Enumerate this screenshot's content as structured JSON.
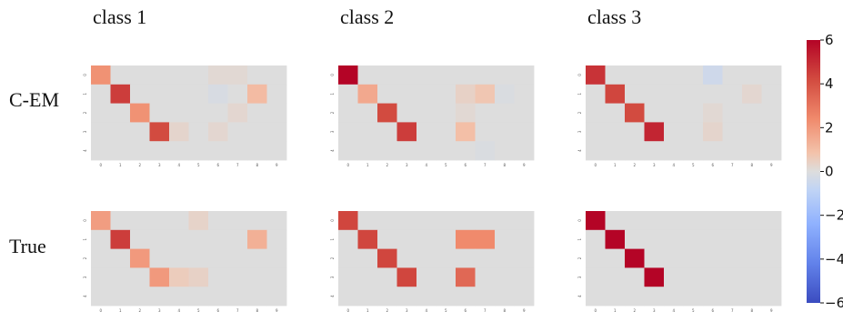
{
  "figure": {
    "col_titles": [
      "class 1",
      "class 2",
      "class 3"
    ],
    "row_labels": [
      "C-EM",
      "True"
    ]
  },
  "colorbar": {
    "range": [
      -6,
      6
    ],
    "ticks": [
      "6",
      "4",
      "2",
      "0",
      "−2",
      "−4",
      "−6"
    ],
    "colormap": "coolwarm",
    "colors": {
      "low": "#3b4cc0",
      "mid": "#dddddd",
      "high": "#b40426"
    }
  },
  "chart_data": [
    {
      "type": "heatmap",
      "row_label": "C-EM",
      "col_title": "class 1",
      "x_ticks": [
        "0",
        "1",
        "2",
        "3",
        "4",
        "5",
        "6",
        "7",
        "8",
        "9"
      ],
      "y_ticks": [
        "0",
        "1",
        "2",
        "3",
        "4"
      ],
      "values": [
        [
          2.8,
          0,
          0,
          0,
          0,
          0,
          0.3,
          0.3,
          0,
          0
        ],
        [
          0,
          4.8,
          0,
          0,
          0,
          0,
          -0.3,
          0,
          1.7,
          0
        ],
        [
          0,
          0,
          2.8,
          0,
          0,
          0,
          0,
          0.4,
          0,
          0
        ],
        [
          0,
          0,
          0,
          4.5,
          0.5,
          0,
          0.4,
          0,
          0,
          0
        ],
        [
          0,
          0,
          0,
          0,
          0,
          0,
          0,
          0,
          0,
          0
        ]
      ]
    },
    {
      "type": "heatmap",
      "row_label": "C-EM",
      "col_title": "class 2",
      "x_ticks": [
        "0",
        "1",
        "2",
        "3",
        "4",
        "5",
        "6",
        "7",
        "8",
        "9"
      ],
      "y_ticks": [
        "0",
        "1",
        "2",
        "3",
        "4"
      ],
      "values": [
        [
          6.0,
          0,
          0,
          0,
          0,
          0,
          0,
          0,
          0,
          0
        ],
        [
          0,
          2.2,
          0,
          0,
          0,
          0,
          0.7,
          1.3,
          -0.2,
          0
        ],
        [
          0,
          0,
          4.5,
          0,
          0,
          0,
          0.3,
          0,
          0,
          0
        ],
        [
          0,
          0,
          0,
          4.8,
          0,
          0,
          1.6,
          0,
          0,
          0
        ],
        [
          0,
          0,
          0,
          0,
          0,
          0,
          0,
          -0.2,
          0,
          0
        ]
      ]
    },
    {
      "type": "heatmap",
      "row_label": "C-EM",
      "col_title": "class 3",
      "x_ticks": [
        "0",
        "1",
        "2",
        "3",
        "4",
        "5",
        "6",
        "7",
        "8",
        "9"
      ],
      "y_ticks": [
        "0",
        "1",
        "2",
        "3",
        "4"
      ],
      "values": [
        [
          5.0,
          0,
          0,
          0,
          0,
          0,
          -0.8,
          0,
          0,
          0
        ],
        [
          0,
          4.6,
          0,
          0,
          0,
          0,
          0,
          0,
          0.4,
          0
        ],
        [
          0,
          0,
          4.5,
          0,
          0,
          0,
          0.3,
          0,
          0,
          0
        ],
        [
          0,
          0,
          0,
          5.3,
          0,
          0,
          0.5,
          0,
          0,
          0
        ],
        [
          0,
          0,
          0,
          0,
          0,
          0,
          0,
          0,
          0,
          0
        ]
      ]
    },
    {
      "type": "heatmap",
      "row_label": "True",
      "col_title": "class 1",
      "x_ticks": [
        "0",
        "1",
        "2",
        "3",
        "4",
        "5",
        "6",
        "7",
        "8",
        "9"
      ],
      "y_ticks": [
        "0",
        "1",
        "2",
        "3",
        "4"
      ],
      "values": [
        [
          2.5,
          0,
          0,
          0,
          0,
          0.6,
          0,
          0,
          0,
          0
        ],
        [
          0,
          4.8,
          0,
          0,
          0,
          0,
          0,
          0,
          2.0,
          0
        ],
        [
          0,
          0,
          2.6,
          0,
          0,
          0,
          0,
          0,
          0,
          0
        ],
        [
          0,
          0,
          0,
          2.6,
          1.0,
          0.7,
          0,
          0,
          0,
          0
        ],
        [
          0,
          0,
          0,
          0,
          0,
          0,
          0,
          0,
          0,
          0
        ]
      ]
    },
    {
      "type": "heatmap",
      "row_label": "True",
      "col_title": "class 2",
      "x_ticks": [
        "0",
        "1",
        "2",
        "3",
        "4",
        "5",
        "6",
        "7",
        "8",
        "9"
      ],
      "y_ticks": [
        "0",
        "1",
        "2",
        "3",
        "4"
      ],
      "values": [
        [
          4.6,
          0,
          0,
          0,
          0,
          0,
          0,
          0,
          0,
          0
        ],
        [
          0,
          4.6,
          0,
          0,
          0,
          0,
          3.0,
          3.0,
          0,
          0
        ],
        [
          0,
          0,
          4.6,
          0,
          0,
          0,
          0,
          0,
          0,
          0
        ],
        [
          0,
          0,
          0,
          4.6,
          0,
          0,
          3.8,
          0,
          0,
          0
        ],
        [
          0,
          0,
          0,
          0,
          0,
          0,
          0,
          0,
          0,
          0
        ]
      ]
    },
    {
      "type": "heatmap",
      "row_label": "True",
      "col_title": "class 3",
      "x_ticks": [
        "0",
        "1",
        "2",
        "3",
        "4",
        "5",
        "6",
        "7",
        "8",
        "9"
      ],
      "y_ticks": [
        "0",
        "1",
        "2",
        "3",
        "4"
      ],
      "values": [
        [
          6.5,
          0,
          0,
          0,
          0,
          0,
          0,
          0,
          0,
          0
        ],
        [
          0,
          6.5,
          0,
          0,
          0,
          0,
          0,
          0,
          0,
          0
        ],
        [
          0,
          0,
          6.5,
          0,
          0,
          0,
          0,
          0,
          0,
          0
        ],
        [
          0,
          0,
          0,
          6.5,
          0,
          0,
          0,
          0,
          0,
          0
        ],
        [
          0,
          0,
          0,
          0,
          0,
          0,
          0,
          0,
          0,
          0
        ]
      ]
    }
  ]
}
